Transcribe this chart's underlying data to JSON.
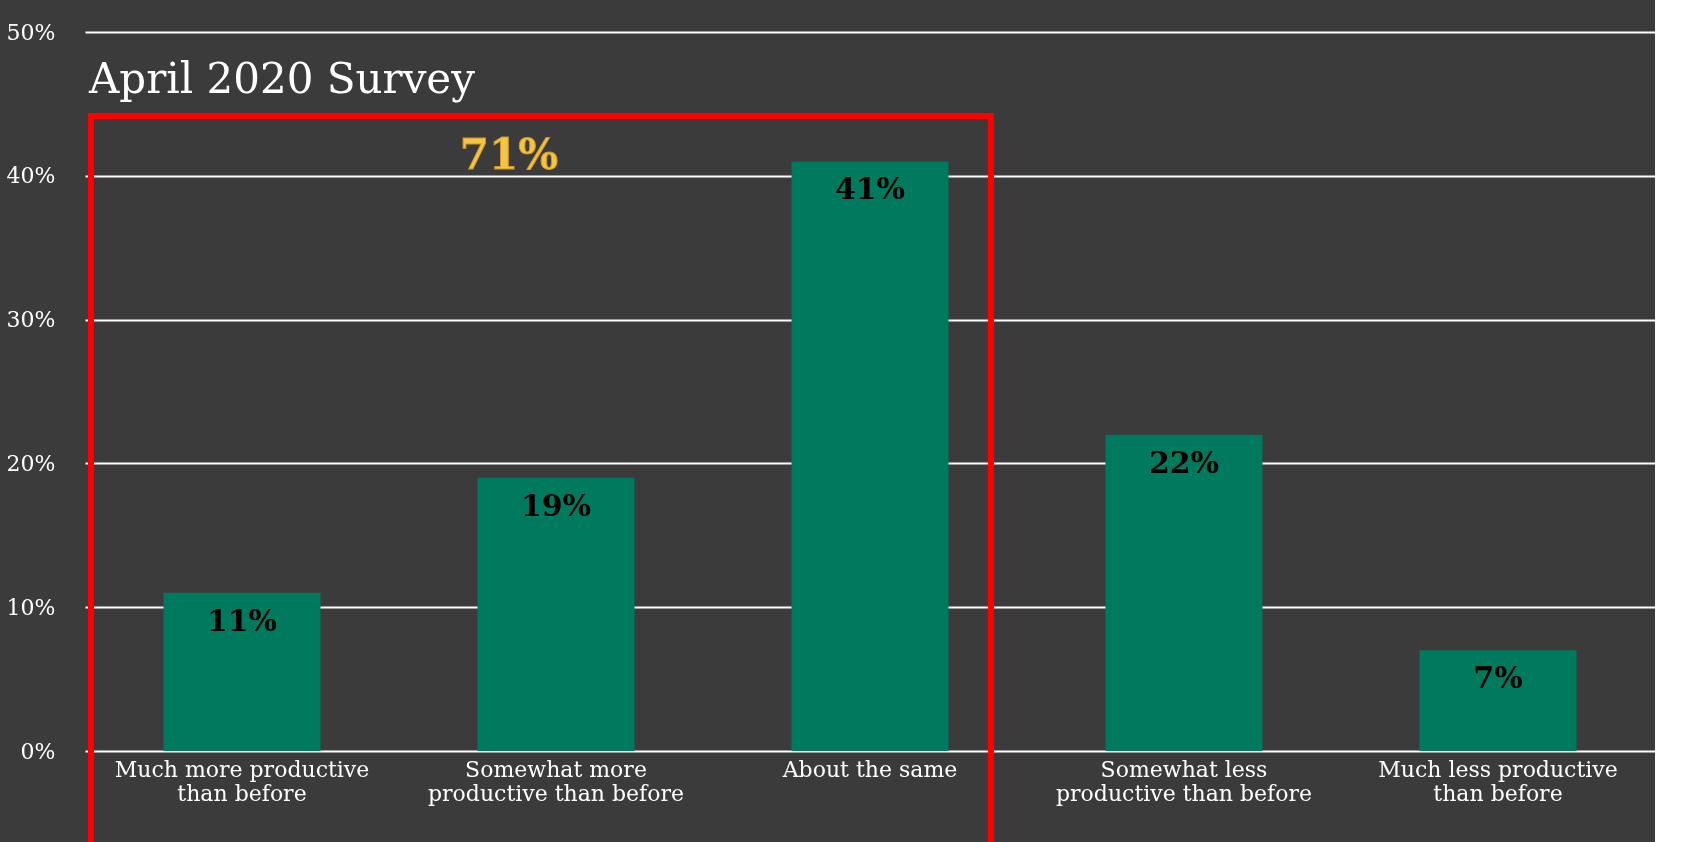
{
  "chart_data": {
    "type": "bar",
    "title": "April 2020 Survey",
    "categories": [
      "Much more productive than before",
      "Somewhat more productive than before",
      "About the same",
      "Somewhat less productive than before",
      "Much less productive than before"
    ],
    "values": [
      11,
      19,
      41,
      22,
      7
    ],
    "value_labels": [
      "11%",
      "19%",
      "41%",
      "22%",
      "7%"
    ],
    "color": "#007a5e",
    "ylim": [
      0,
      50
    ],
    "yticks": [
      {
        "value": 0,
        "label": "0%"
      },
      {
        "value": 10,
        "label": "10%"
      },
      {
        "value": 20,
        "label": "20%"
      },
      {
        "value": 30,
        "label": "30%"
      },
      {
        "value": 40,
        "label": "40%"
      },
      {
        "value": 50,
        "label": "50%"
      }
    ],
    "grid": "y",
    "annotations": [
      "71%"
    ]
  }
}
